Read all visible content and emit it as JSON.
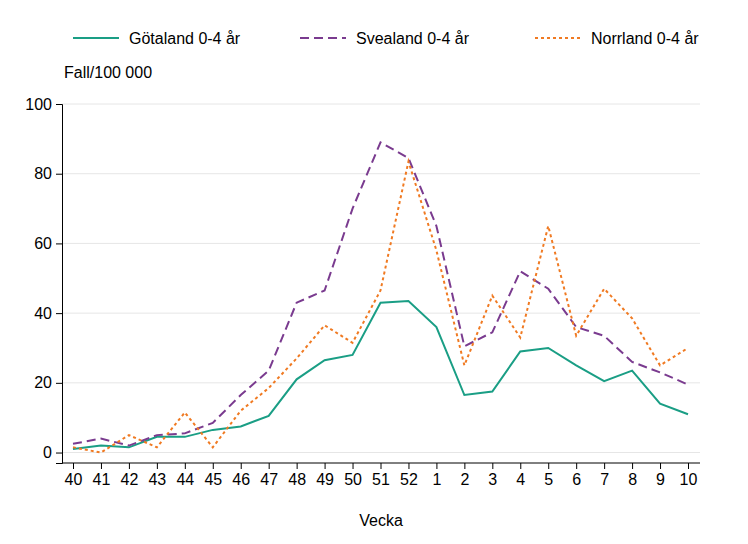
{
  "chart_data": {
    "type": "line",
    "y_label": "Fall/100 000",
    "x_label": "Vecka",
    "categories": [
      "40",
      "41",
      "42",
      "43",
      "44",
      "45",
      "46",
      "47",
      "48",
      "49",
      "50",
      "51",
      "52",
      "1",
      "2",
      "3",
      "4",
      "5",
      "6",
      "7",
      "8",
      "9",
      "10"
    ],
    "series": [
      {
        "name": "Götaland 0-4 år",
        "color": "#1a9e85",
        "line_style": "solid",
        "values": [
          1,
          2,
          1.5,
          4.5,
          4.5,
          6.5,
          7.5,
          10.5,
          21,
          26.5,
          28,
          43,
          43.5,
          36,
          16.5,
          17.5,
          29,
          30,
          25,
          20.5,
          23.5,
          14,
          11
        ]
      },
      {
        "name": "Svealand 0-4 år",
        "color": "#7a3b8f",
        "line_style": "dashed",
        "values": [
          2.5,
          4,
          2,
          5,
          5.5,
          8.5,
          16.5,
          23.5,
          43,
          46.5,
          70,
          89,
          84.5,
          65,
          30.5,
          34.5,
          52,
          47,
          36,
          33.5,
          26,
          23,
          19.5
        ]
      },
      {
        "name": "Norrland 0-4 år",
        "color": "#f07a22",
        "line_style": "dotted",
        "values": [
          1.5,
          0,
          5,
          1.5,
          11.5,
          1.5,
          12,
          18.5,
          27,
          36.5,
          31.5,
          46.5,
          83.5,
          58,
          25,
          45,
          33,
          65,
          33.5,
          47,
          38.5,
          25,
          30
        ]
      }
    ],
    "ylim": [
      -3,
      100
    ],
    "yticks": [
      0,
      20,
      40,
      60,
      80,
      100
    ],
    "grid": true,
    "legend": "top"
  }
}
